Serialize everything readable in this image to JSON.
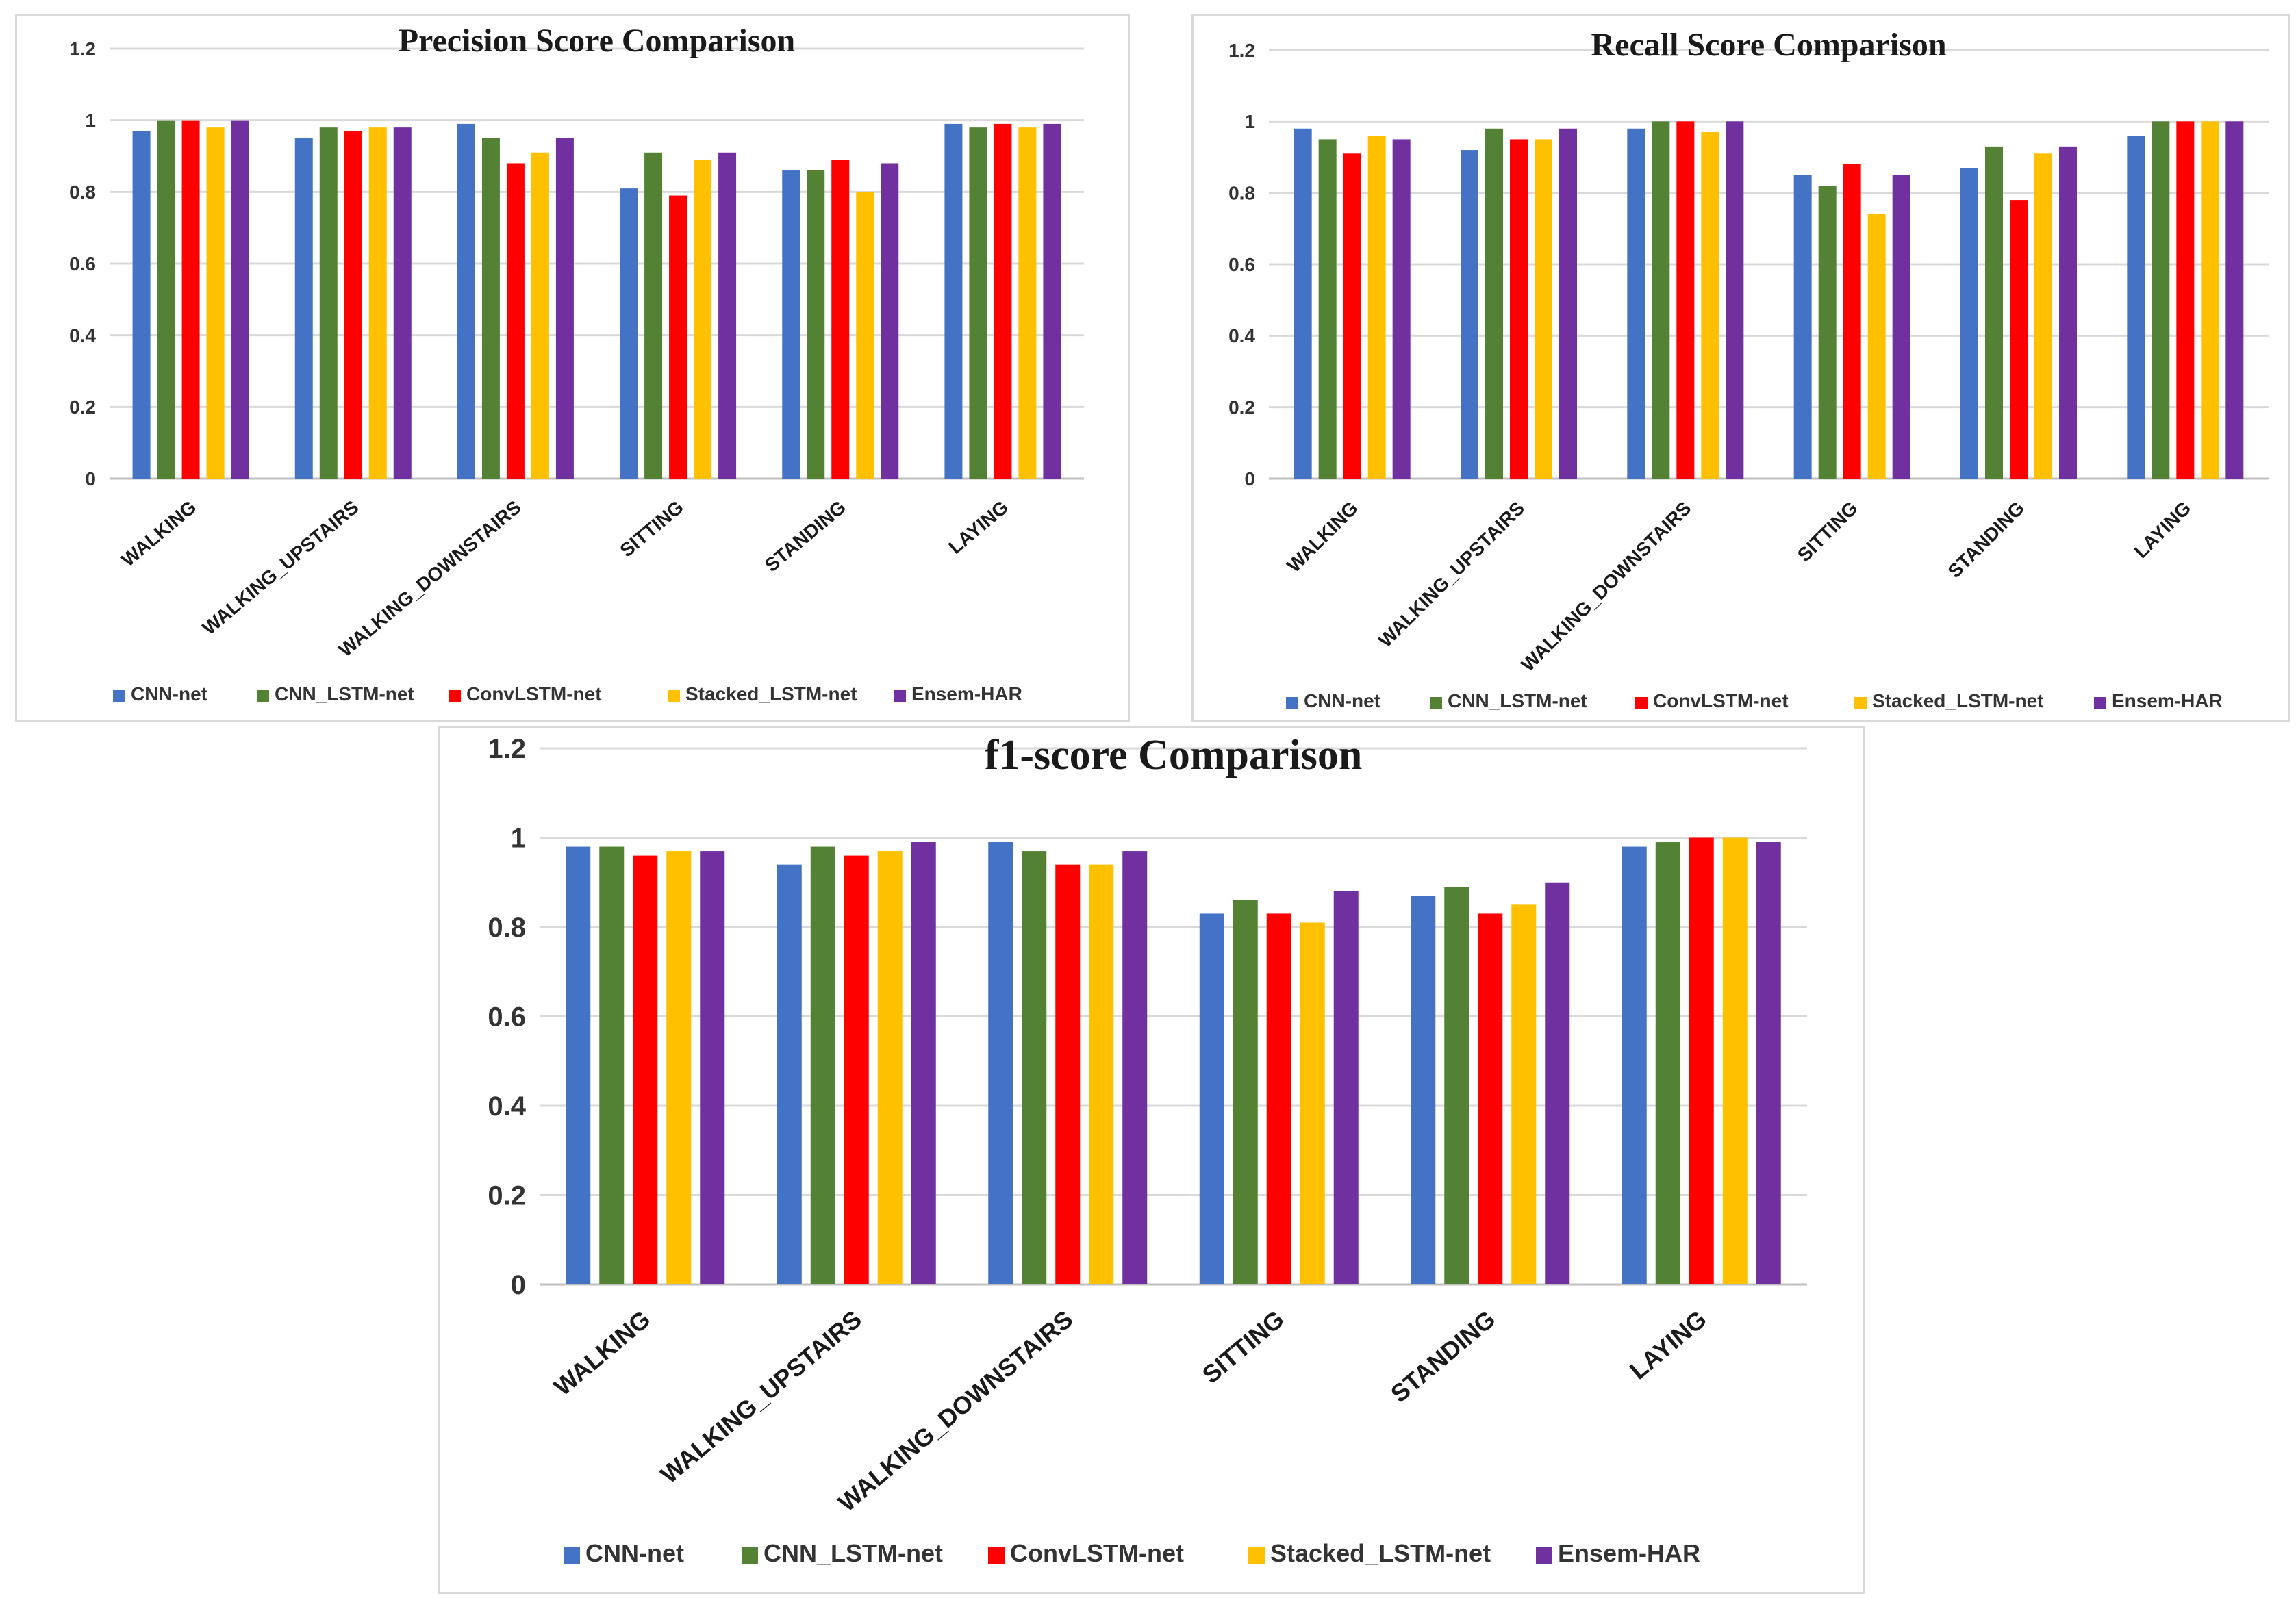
{
  "chart_data": [
    {
      "type": "bar",
      "title": "Precision  Score Comparison",
      "categories": [
        "WALKING",
        "WALKING_UPSTAIRS",
        "WALKING_DOWNSTAIRS",
        "SITTING",
        "STANDING",
        "LAYING"
      ],
      "series": [
        {
          "name": "CNN-net",
          "color": "#4472c4",
          "values": [
            0.97,
            0.95,
            0.99,
            0.81,
            0.86,
            0.99
          ]
        },
        {
          "name": "CNN_LSTM-net",
          "color": "#548235",
          "values": [
            1.0,
            0.98,
            0.95,
            0.91,
            0.86,
            0.98
          ]
        },
        {
          "name": "ConvLSTM-net",
          "color": "#ff0000",
          "values": [
            1.0,
            0.97,
            0.88,
            0.79,
            0.89,
            0.99
          ]
        },
        {
          "name": "Stacked_LSTM-net",
          "color": "#ffc000",
          "values": [
            0.98,
            0.98,
            0.91,
            0.89,
            0.8,
            0.98
          ]
        },
        {
          "name": "Ensem-HAR",
          "color": "#7030a0",
          "values": [
            1.0,
            0.98,
            0.95,
            0.91,
            0.88,
            0.99
          ]
        }
      ],
      "yticks": [
        "0",
        "0.2",
        "0.4",
        "0.6",
        "0.8",
        "1",
        "1.2"
      ],
      "ylim": [
        0,
        1.2
      ],
      "grid": true,
      "legend": "bottom"
    },
    {
      "type": "bar",
      "title": "Recall  Score Comparison",
      "categories": [
        "WALKING",
        "WALKING_UPSTAIRS",
        "WALKING_DOWNSTAIRS",
        "SITTING",
        "STANDING",
        "LAYING"
      ],
      "series": [
        {
          "name": "CNN-net",
          "color": "#4472c4",
          "values": [
            0.98,
            0.92,
            0.98,
            0.85,
            0.87,
            0.96
          ]
        },
        {
          "name": "CNN_LSTM-net",
          "color": "#548235",
          "values": [
            0.95,
            0.98,
            1.0,
            0.82,
            0.93,
            1.0
          ]
        },
        {
          "name": "ConvLSTM-net",
          "color": "#ff0000",
          "values": [
            0.91,
            0.95,
            1.0,
            0.88,
            0.78,
            1.0
          ]
        },
        {
          "name": "Stacked_LSTM-net",
          "color": "#ffc000",
          "values": [
            0.96,
            0.95,
            0.97,
            0.74,
            0.91,
            1.0
          ]
        },
        {
          "name": "Ensem-HAR",
          "color": "#7030a0",
          "values": [
            0.95,
            0.98,
            1.0,
            0.85,
            0.93,
            1.0
          ]
        }
      ],
      "yticks": [
        "0",
        "0.2",
        "0.4",
        "0.6",
        "0.8",
        "1",
        "1.2"
      ],
      "ylim": [
        0,
        1.2
      ],
      "grid": true,
      "legend": "bottom"
    },
    {
      "type": "bar",
      "title": "f1-score Comparison",
      "categories": [
        "WALKING",
        "WALKING_UPSTAIRS",
        "WALKING_DOWNSTAIRS",
        "SITTING",
        "STANDING",
        "LAYING"
      ],
      "series": [
        {
          "name": "CNN-net",
          "color": "#4472c4",
          "values": [
            0.98,
            0.94,
            0.99,
            0.83,
            0.87,
            0.98
          ]
        },
        {
          "name": "CNN_LSTM-net",
          "color": "#548235",
          "values": [
            0.98,
            0.98,
            0.97,
            0.86,
            0.89,
            0.99
          ]
        },
        {
          "name": "ConvLSTM-net",
          "color": "#ff0000",
          "values": [
            0.96,
            0.96,
            0.94,
            0.83,
            0.83,
            1.0
          ]
        },
        {
          "name": "Stacked_LSTM-net",
          "color": "#ffc000",
          "values": [
            0.97,
            0.97,
            0.94,
            0.81,
            0.85,
            1.0
          ]
        },
        {
          "name": "Ensem-HAR",
          "color": "#7030a0",
          "values": [
            0.97,
            0.99,
            0.97,
            0.88,
            0.9,
            0.99
          ]
        }
      ],
      "yticks": [
        "0",
        "0.2",
        "0.4",
        "0.6",
        "0.8",
        "1",
        "1.2"
      ],
      "ylim": [
        0,
        1.2
      ],
      "grid": true,
      "legend": "bottom"
    }
  ]
}
